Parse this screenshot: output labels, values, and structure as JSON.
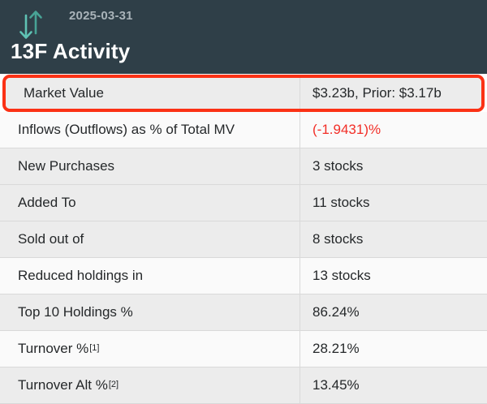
{
  "header": {
    "date": "2025-03-31",
    "title": "13F Activity",
    "icon": "up-down-arrows-icon"
  },
  "colors": {
    "header_bg": "#2f3f48",
    "accent_teal_up": "#48a396",
    "accent_teal_down": "#5fc2b4",
    "highlight_border": "#fb3115",
    "negative_text": "#f22e27",
    "row_shaded_bg": "#ececec",
    "row_plain_bg": "#fafafa"
  },
  "table": {
    "rows": [
      {
        "label": "Market Value",
        "value": "$3.23b, Prior: $3.17b",
        "shaded": true,
        "highlighted": true,
        "negative": false,
        "sup": ""
      },
      {
        "label": "Inflows (Outflows) as % of Total MV",
        "value": "(-1.9431)%",
        "shaded": false,
        "highlighted": false,
        "negative": true,
        "sup": ""
      },
      {
        "label": "New Purchases",
        "value": "3 stocks",
        "shaded": true,
        "highlighted": false,
        "negative": false,
        "sup": ""
      },
      {
        "label": "Added To",
        "value": "11 stocks",
        "shaded": true,
        "highlighted": false,
        "negative": false,
        "sup": ""
      },
      {
        "label": "Sold out of",
        "value": "8 stocks",
        "shaded": true,
        "highlighted": false,
        "negative": false,
        "sup": ""
      },
      {
        "label": "Reduced holdings in",
        "value": "13 stocks",
        "shaded": false,
        "highlighted": false,
        "negative": false,
        "sup": ""
      },
      {
        "label": "Top 10 Holdings %",
        "value": "86.24%",
        "shaded": true,
        "highlighted": false,
        "negative": false,
        "sup": ""
      },
      {
        "label": "Turnover %",
        "value": "28.21%",
        "shaded": false,
        "highlighted": false,
        "negative": false,
        "sup": "[1]"
      },
      {
        "label": "Turnover Alt %",
        "value": "13.45%",
        "shaded": true,
        "highlighted": false,
        "negative": false,
        "sup": "[2]"
      }
    ]
  }
}
